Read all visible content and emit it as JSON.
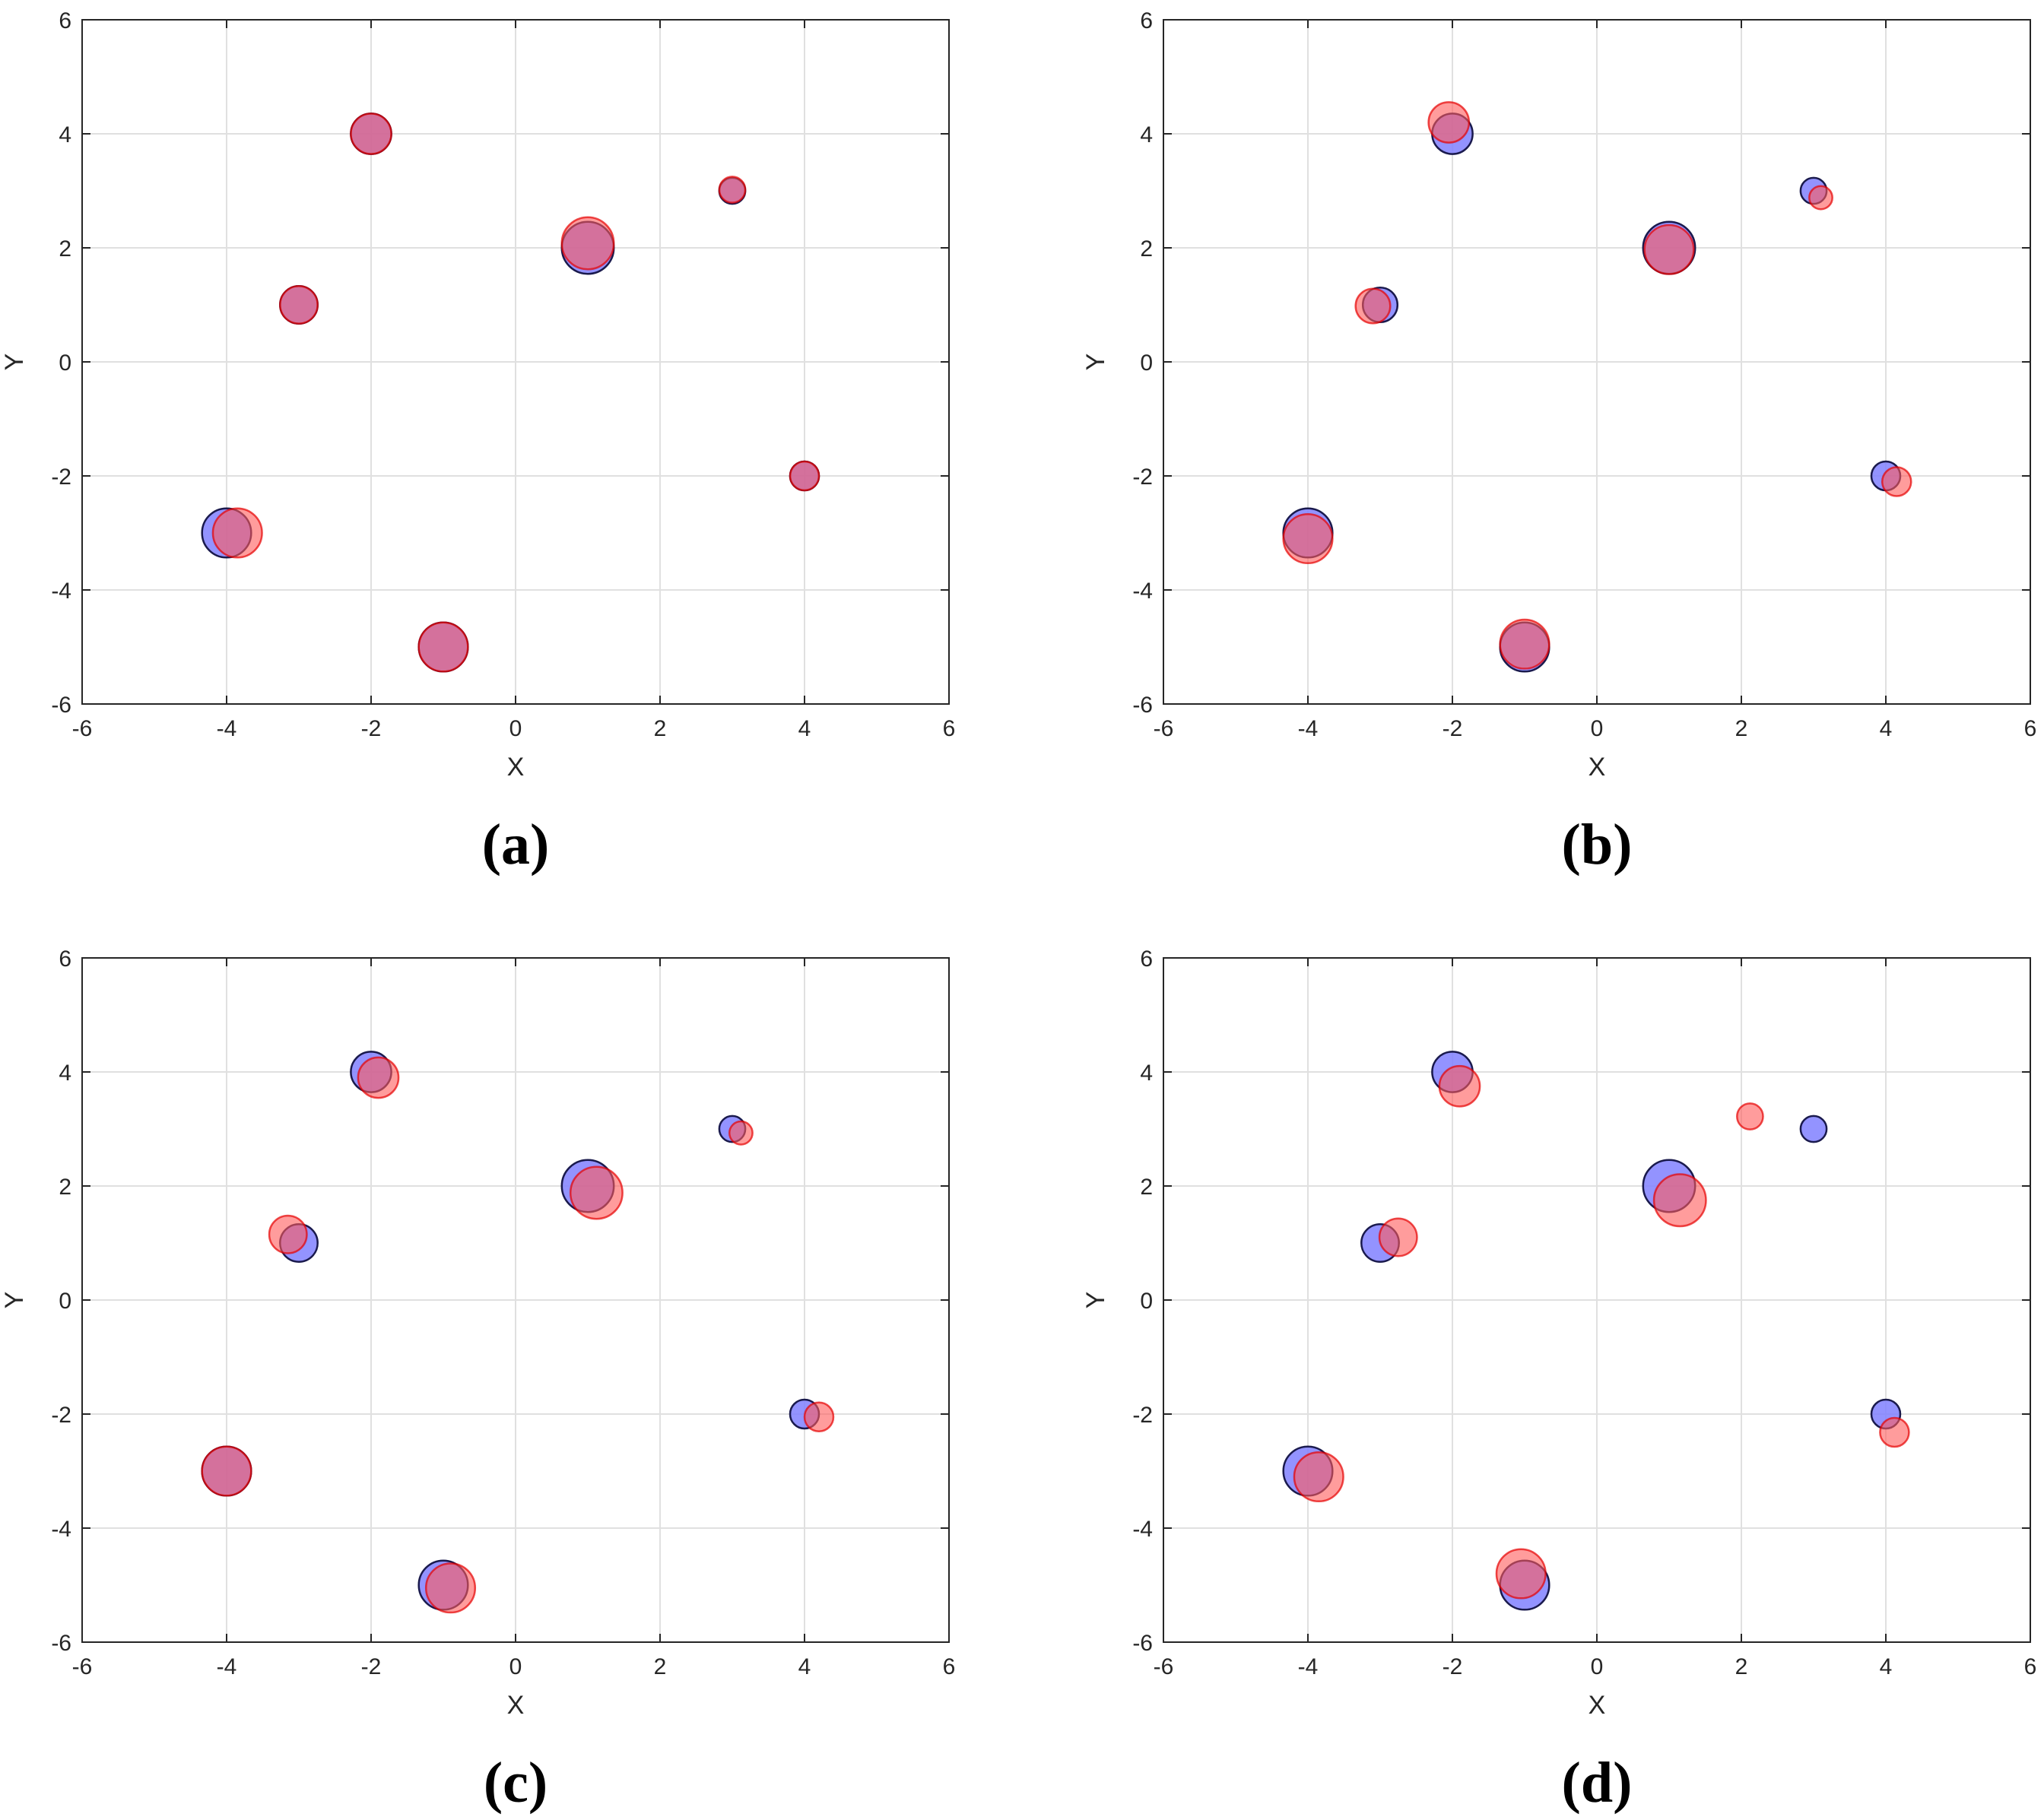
{
  "colors": {
    "true_fill": "#8080ff",
    "true_stroke": "#1a1a4d",
    "est_fill": "#ff5a5a",
    "est_stroke": "#e60000",
    "grid": "#e0e0e0",
    "axis": "#262626"
  },
  "chart_data": [
    {
      "type": "scatter",
      "panel_label": "(a)",
      "xlabel": "X",
      "ylabel": "Y",
      "xlim": [
        -6,
        6
      ],
      "ylim": [
        -6,
        6
      ],
      "xticks": [
        -6,
        -4,
        -2,
        0,
        2,
        4,
        6
      ],
      "yticks": [
        -6,
        -4,
        -2,
        0,
        2,
        4,
        6
      ],
      "grid": true,
      "series": [
        {
          "role": "true",
          "points": [
            {
              "x": -2,
              "y": 4,
              "size": 0.28
            },
            {
              "x": -3,
              "y": 1,
              "size": 0.26
            },
            {
              "x": -4,
              "y": -3,
              "size": 0.34
            },
            {
              "x": -1,
              "y": -5,
              "size": 0.34
            },
            {
              "x": 1,
              "y": 2,
              "size": 0.36
            },
            {
              "x": 3,
              "y": 3,
              "size": 0.18
            },
            {
              "x": 4,
              "y": -2,
              "size": 0.2
            }
          ]
        },
        {
          "role": "estimated",
          "points": [
            {
              "x": -2,
              "y": 4,
              "size": 0.28
            },
            {
              "x": -3,
              "y": 1,
              "size": 0.26
            },
            {
              "x": -3.85,
              "y": -3,
              "size": 0.34
            },
            {
              "x": -1,
              "y": -5,
              "size": 0.34
            },
            {
              "x": 1,
              "y": 2.08,
              "size": 0.36
            },
            {
              "x": 3,
              "y": 3.02,
              "size": 0.18
            },
            {
              "x": 4,
              "y": -2,
              "size": 0.2
            }
          ]
        }
      ]
    },
    {
      "type": "scatter",
      "panel_label": "(b)",
      "xlabel": "X",
      "ylabel": "Y",
      "xlim": [
        -6,
        6
      ],
      "ylim": [
        -6,
        6
      ],
      "xticks": [
        -6,
        -4,
        -2,
        0,
        2,
        4,
        6
      ],
      "yticks": [
        -6,
        -4,
        -2,
        0,
        2,
        4,
        6
      ],
      "grid": true,
      "series": [
        {
          "role": "true",
          "points": [
            {
              "x": -2,
              "y": 4,
              "size": 0.28
            },
            {
              "x": -3,
              "y": 1,
              "size": 0.24
            },
            {
              "x": -4,
              "y": -3,
              "size": 0.34
            },
            {
              "x": -1,
              "y": -5,
              "size": 0.34
            },
            {
              "x": 1,
              "y": 2,
              "size": 0.36
            },
            {
              "x": 3,
              "y": 3,
              "size": 0.18
            },
            {
              "x": 4,
              "y": -2,
              "size": 0.2
            }
          ]
        },
        {
          "role": "estimated",
          "points": [
            {
              "x": -2.05,
              "y": 4.2,
              "size": 0.28
            },
            {
              "x": -3.1,
              "y": 0.98,
              "size": 0.24
            },
            {
              "x": -4,
              "y": -3.1,
              "size": 0.34
            },
            {
              "x": -1,
              "y": -4.95,
              "size": 0.34
            },
            {
              "x": 1,
              "y": 1.97,
              "size": 0.34
            },
            {
              "x": 3.1,
              "y": 2.88,
              "size": 0.16
            },
            {
              "x": 4.15,
              "y": -2.1,
              "size": 0.2
            }
          ]
        }
      ]
    },
    {
      "type": "scatter",
      "panel_label": "(c)",
      "xlabel": "X",
      "ylabel": "Y",
      "xlim": [
        -6,
        6
      ],
      "ylim": [
        -6,
        6
      ],
      "xticks": [
        -6,
        -4,
        -2,
        0,
        2,
        4,
        6
      ],
      "yticks": [
        -6,
        -4,
        -2,
        0,
        2,
        4,
        6
      ],
      "grid": true,
      "series": [
        {
          "role": "true",
          "points": [
            {
              "x": -2,
              "y": 4,
              "size": 0.28
            },
            {
              "x": -3,
              "y": 1,
              "size": 0.26
            },
            {
              "x": -4,
              "y": -3,
              "size": 0.34
            },
            {
              "x": -1,
              "y": -5,
              "size": 0.34
            },
            {
              "x": 1,
              "y": 2,
              "size": 0.36
            },
            {
              "x": 3,
              "y": 3,
              "size": 0.18
            },
            {
              "x": 4,
              "y": -2,
              "size": 0.2
            }
          ]
        },
        {
          "role": "estimated",
          "points": [
            {
              "x": -1.9,
              "y": 3.9,
              "size": 0.28
            },
            {
              "x": -3.15,
              "y": 1.15,
              "size": 0.26
            },
            {
              "x": -4,
              "y": -3,
              "size": 0.34
            },
            {
              "x": -0.9,
              "y": -5.05,
              "size": 0.34
            },
            {
              "x": 1.12,
              "y": 1.88,
              "size": 0.36
            },
            {
              "x": 3.12,
              "y": 2.93,
              "size": 0.16
            },
            {
              "x": 4.2,
              "y": -2.05,
              "size": 0.2
            }
          ]
        }
      ]
    },
    {
      "type": "scatter",
      "panel_label": "(d)",
      "xlabel": "X",
      "ylabel": "Y",
      "xlim": [
        -6,
        6
      ],
      "ylim": [
        -6,
        6
      ],
      "xticks": [
        -6,
        -4,
        -2,
        0,
        2,
        4,
        6
      ],
      "yticks": [
        -6,
        -4,
        -2,
        0,
        2,
        4,
        6
      ],
      "grid": true,
      "series": [
        {
          "role": "true",
          "points": [
            {
              "x": -2,
              "y": 4,
              "size": 0.28
            },
            {
              "x": -3,
              "y": 1,
              "size": 0.26
            },
            {
              "x": -4,
              "y": -3,
              "size": 0.34
            },
            {
              "x": -1,
              "y": -5,
              "size": 0.34
            },
            {
              "x": 1,
              "y": 2,
              "size": 0.36
            },
            {
              "x": 3,
              "y": 3,
              "size": 0.18
            },
            {
              "x": 4,
              "y": -2,
              "size": 0.2
            }
          ]
        },
        {
          "role": "estimated",
          "points": [
            {
              "x": -1.9,
              "y": 3.75,
              "size": 0.28
            },
            {
              "x": -2.75,
              "y": 1.1,
              "size": 0.26
            },
            {
              "x": -3.85,
              "y": -3.1,
              "size": 0.34
            },
            {
              "x": -1.05,
              "y": -4.8,
              "size": 0.34
            },
            {
              "x": 1.15,
              "y": 1.75,
              "size": 0.36
            },
            {
              "x": 2.12,
              "y": 3.22,
              "size": 0.18
            },
            {
              "x": 4.12,
              "y": -2.32,
              "size": 0.2
            }
          ]
        }
      ]
    }
  ]
}
